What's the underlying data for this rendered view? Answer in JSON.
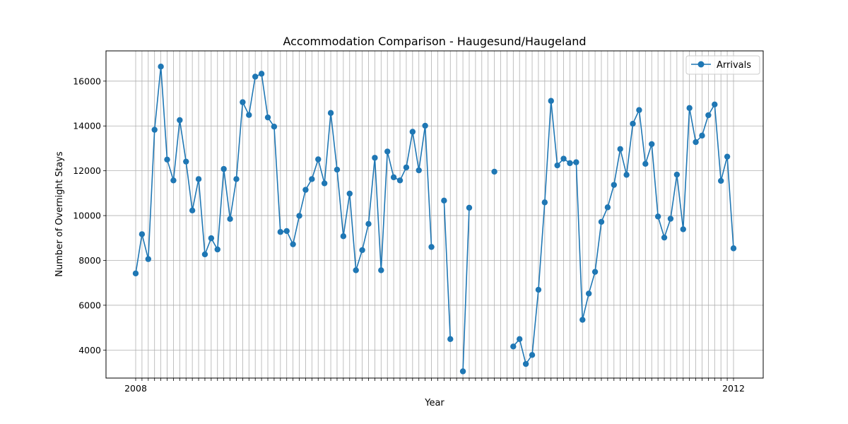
{
  "chart_data": {
    "type": "line",
    "title": "Accommodation Comparison - Haugesund/Haugeland",
    "xlabel": "Year",
    "ylabel": "Number of Overnight Stays",
    "ylim": [
      2750,
      17350
    ],
    "yticks": [
      4000,
      6000,
      8000,
      10000,
      12000,
      14000,
      16000
    ],
    "grid": true,
    "legend_position": "top-right",
    "x_tick_label_first": "2008",
    "x_tick_label_last": "2012",
    "series": [
      {
        "name": "Arrivals",
        "color": "#1f77b4",
        "marker": "circle",
        "values": [
          7420,
          9170,
          8060,
          13830,
          16650,
          12500,
          11570,
          14260,
          12410,
          10230,
          11630,
          8270,
          8990,
          8490,
          12080,
          9850,
          11630,
          15060,
          14490,
          16200,
          16330,
          14380,
          13970,
          9270,
          9310,
          8720,
          9990,
          11150,
          11630,
          12510,
          11440,
          14580,
          12050,
          9080,
          10980,
          7560,
          8460,
          9630,
          12580,
          7560,
          12860,
          11710,
          11570,
          12150,
          13740,
          12020,
          14010,
          8600,
          null,
          10670,
          4490,
          null,
          3050,
          10350,
          null,
          null,
          null,
          11960,
          null,
          null,
          4160,
          4490,
          3380,
          3780,
          6690,
          10590,
          15120,
          12240,
          12540,
          12340,
          12380,
          5350,
          6520,
          7490,
          9720,
          10370,
          11370,
          12970,
          11820,
          14100,
          14710,
          12310,
          13190,
          9960,
          9020,
          9860,
          11830,
          9390,
          14800,
          13280,
          13570,
          14480,
          14960,
          11550,
          12630,
          8540
        ]
      }
    ]
  }
}
